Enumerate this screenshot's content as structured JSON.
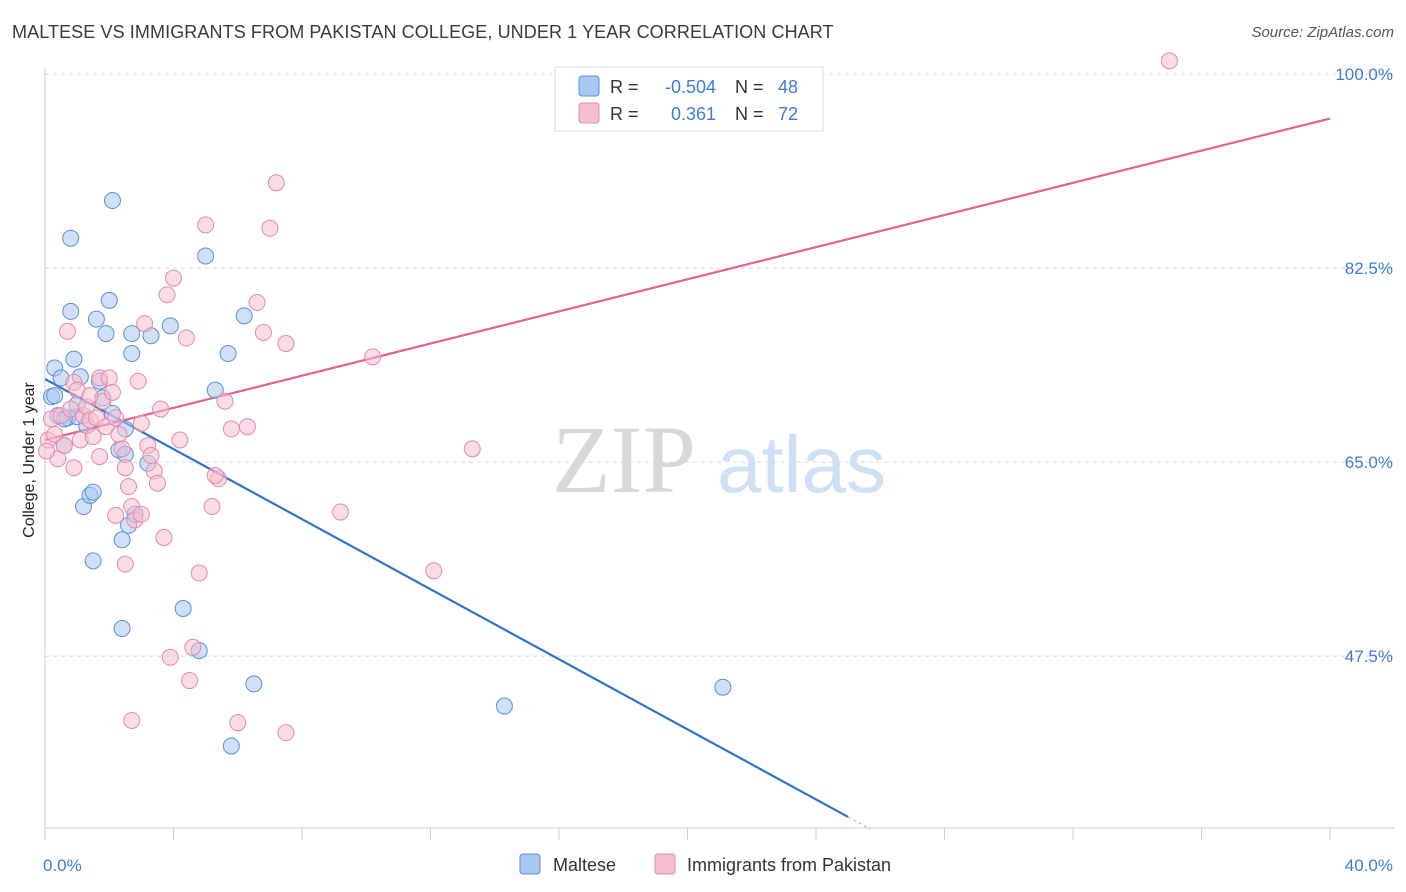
{
  "title": "MALTESE VS IMMIGRANTS FROM PAKISTAN COLLEGE, UNDER 1 YEAR CORRELATION CHART",
  "source": "Source: ZipAtlas.com",
  "watermark": {
    "zip": "ZIP",
    "atlas": "atlas"
  },
  "colors": {
    "blue_fill": "#a9c8f0",
    "blue_stroke": "#5b8fd8",
    "blue_line": "#2f73d0",
    "pink_fill": "#f6bfd0",
    "pink_stroke": "#e689a8",
    "pink_line": "#e0648c",
    "grid": "#d8d8d8",
    "axis_label": "#3f7bd6"
  },
  "legend": {
    "rows": [
      {
        "r_label": "R =",
        "r_value": "-0.504",
        "n_label": "N =",
        "n_value": "48"
      },
      {
        "r_label": "R =",
        "r_value": "0.361",
        "n_label": "N =",
        "n_value": "72"
      }
    ]
  },
  "chart_data": {
    "type": "scatter",
    "title": "MALTESE VS IMMIGRANTS FROM PAKISTAN COLLEGE, UNDER 1 YEAR CORRELATION CHART",
    "xlabel": "",
    "ylabel": "College, Under 1 year",
    "xlim": [
      0,
      40
    ],
    "ylim": [
      32,
      102
    ],
    "x_tick_labels": [
      "0.0%",
      "40.0%"
    ],
    "y_ticks": [
      100.0,
      82.5,
      65.0,
      47.5
    ],
    "y_tick_labels": [
      "100.0%",
      "82.5%",
      "65.0%",
      "47.5%"
    ],
    "legend_position": "top-center",
    "series": [
      {
        "name": "Maltese",
        "color": "blue",
        "trend": {
          "x": [
            0.0,
            25.0
          ],
          "y": [
            72.5,
            33.0
          ]
        },
        "points": [
          [
            0.2,
            70.9
          ],
          [
            0.3,
            73.5
          ],
          [
            0.3,
            71.0
          ],
          [
            0.4,
            69.2
          ],
          [
            0.5,
            72.6
          ],
          [
            0.6,
            66.5
          ],
          [
            0.7,
            69.0
          ],
          [
            0.8,
            85.2
          ],
          [
            0.8,
            78.6
          ],
          [
            0.9,
            74.3
          ],
          [
            1.0,
            69.1
          ],
          [
            1.1,
            72.7
          ],
          [
            1.2,
            61.0
          ],
          [
            1.3,
            68.3
          ],
          [
            1.4,
            62.0
          ],
          [
            1.5,
            56.1
          ],
          [
            1.6,
            77.9
          ],
          [
            1.7,
            72.3
          ],
          [
            1.8,
            70.8
          ],
          [
            1.9,
            76.6
          ],
          [
            2.0,
            79.6
          ],
          [
            2.1,
            69.4
          ],
          [
            2.1,
            88.6
          ],
          [
            2.3,
            66.1
          ],
          [
            2.4,
            50.0
          ],
          [
            2.4,
            58.0
          ],
          [
            2.5,
            65.7
          ],
          [
            2.6,
            59.3
          ],
          [
            2.7,
            74.8
          ],
          [
            2.7,
            76.6
          ],
          [
            2.8,
            60.3
          ],
          [
            2.5,
            68.0
          ],
          [
            3.3,
            76.4
          ],
          [
            3.9,
            77.3
          ],
          [
            4.3,
            51.8
          ],
          [
            4.8,
            48.0
          ],
          [
            5.0,
            83.6
          ],
          [
            5.3,
            71.5
          ],
          [
            5.7,
            74.8
          ],
          [
            5.8,
            39.4
          ],
          [
            6.2,
            78.2
          ],
          [
            6.5,
            45.0
          ],
          [
            14.3,
            43.0
          ],
          [
            21.1,
            44.7
          ],
          [
            1.0,
            70.2
          ],
          [
            0.6,
            68.9
          ],
          [
            1.5,
            62.3
          ],
          [
            3.2,
            64.9
          ]
        ]
      },
      {
        "name": "Immigrants from Pakistan",
        "color": "pink",
        "trend": {
          "x": [
            0.0,
            40.0
          ],
          "y": [
            67.0,
            96.0
          ]
        },
        "points": [
          [
            0.1,
            67.0
          ],
          [
            0.2,
            68.9
          ],
          [
            0.3,
            67.5
          ],
          [
            0.4,
            65.3
          ],
          [
            0.5,
            69.2
          ],
          [
            0.6,
            66.5
          ],
          [
            0.7,
            76.8
          ],
          [
            0.8,
            69.8
          ],
          [
            0.9,
            72.2
          ],
          [
            1.0,
            71.5
          ],
          [
            1.1,
            67.0
          ],
          [
            1.2,
            69.2
          ],
          [
            1.3,
            70.0
          ],
          [
            1.4,
            68.8
          ],
          [
            1.5,
            67.3
          ],
          [
            1.6,
            69.0
          ],
          [
            1.7,
            72.6
          ],
          [
            1.8,
            70.5
          ],
          [
            1.9,
            68.2
          ],
          [
            2.0,
            72.6
          ],
          [
            2.1,
            71.3
          ],
          [
            2.2,
            69.0
          ],
          [
            2.3,
            67.5
          ],
          [
            2.4,
            66.2
          ],
          [
            2.5,
            64.5
          ],
          [
            2.6,
            62.8
          ],
          [
            2.7,
            61.0
          ],
          [
            2.8,
            59.8
          ],
          [
            2.9,
            72.3
          ],
          [
            3.0,
            68.5
          ],
          [
            3.1,
            77.5
          ],
          [
            3.2,
            66.5
          ],
          [
            3.3,
            65.6
          ],
          [
            3.4,
            64.2
          ],
          [
            3.5,
            63.1
          ],
          [
            3.6,
            69.8
          ],
          [
            3.7,
            58.2
          ],
          [
            3.8,
            80.1
          ],
          [
            3.9,
            47.4
          ],
          [
            4.0,
            81.6
          ],
          [
            4.2,
            67.0
          ],
          [
            4.4,
            76.2
          ],
          [
            4.6,
            48.3
          ],
          [
            4.8,
            55.0
          ],
          [
            5.0,
            86.4
          ],
          [
            5.2,
            61.0
          ],
          [
            5.4,
            63.5
          ],
          [
            5.6,
            70.5
          ],
          [
            5.8,
            68.0
          ],
          [
            6.0,
            41.5
          ],
          [
            6.3,
            68.2
          ],
          [
            6.6,
            79.4
          ],
          [
            6.8,
            76.7
          ],
          [
            7.0,
            86.1
          ],
          [
            7.2,
            90.2
          ],
          [
            7.5,
            75.7
          ],
          [
            7.5,
            40.6
          ],
          [
            9.2,
            60.5
          ],
          [
            10.2,
            74.5
          ],
          [
            12.1,
            55.2
          ],
          [
            13.3,
            66.2
          ],
          [
            1.7,
            65.5
          ],
          [
            2.2,
            60.2
          ],
          [
            3.0,
            60.3
          ],
          [
            2.5,
            55.8
          ],
          [
            4.5,
            45.3
          ],
          [
            5.3,
            63.8
          ],
          [
            1.4,
            71.0
          ],
          [
            0.9,
            64.5
          ],
          [
            2.7,
            41.7
          ],
          [
            35.0,
            101.2
          ],
          [
            0.05,
            66.0
          ]
        ]
      }
    ]
  }
}
